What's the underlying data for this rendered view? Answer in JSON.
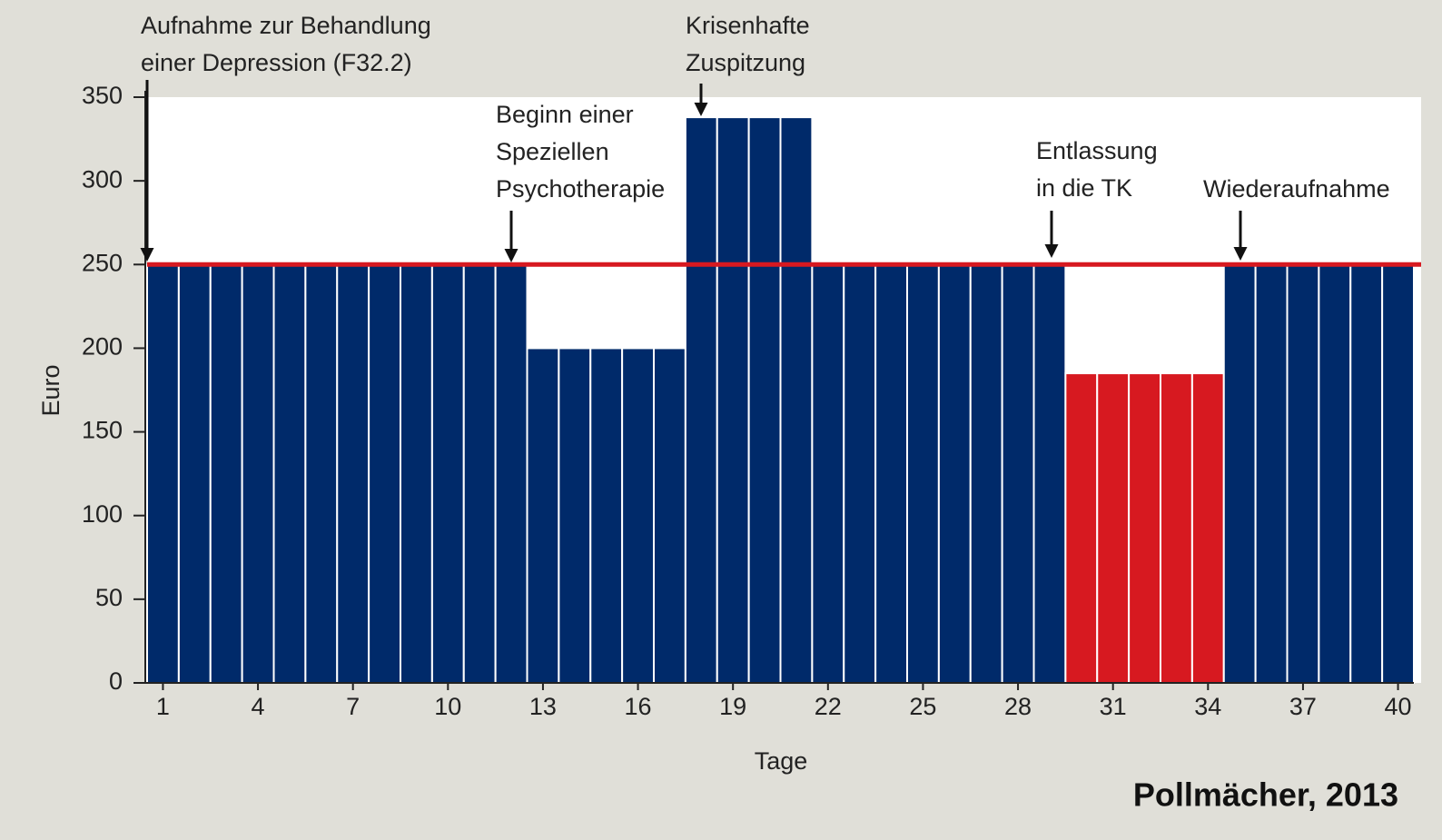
{
  "chart_data": {
    "type": "bar",
    "categories": [
      1,
      null,
      null,
      4,
      null,
      null,
      7,
      null,
      null,
      10,
      null,
      null,
      13,
      null,
      null,
      16,
      null,
      null,
      19,
      null,
      null,
      22,
      null,
      null,
      25,
      null,
      null,
      28,
      null,
      null,
      31,
      null,
      null,
      34,
      null,
      null,
      37,
      null,
      null,
      40
    ],
    "values": [
      250,
      250,
      250,
      250,
      250,
      250,
      250,
      250,
      250,
      250,
      250,
      250,
      200,
      200,
      200,
      200,
      200,
      338,
      338,
      338,
      338,
      250,
      250,
      250,
      250,
      250,
      250,
      250,
      250,
      185,
      185,
      185,
      185,
      185,
      250,
      250,
      250,
      250,
      250,
      250
    ],
    "colors": [
      "#002a6a",
      "#002a6a",
      "#002a6a",
      "#002a6a",
      "#002a6a",
      "#002a6a",
      "#002a6a",
      "#002a6a",
      "#002a6a",
      "#002a6a",
      "#002a6a",
      "#002a6a",
      "#002a6a",
      "#002a6a",
      "#002a6a",
      "#002a6a",
      "#002a6a",
      "#002a6a",
      "#002a6a",
      "#002a6a",
      "#002a6a",
      "#002a6a",
      "#002a6a",
      "#002a6a",
      "#002a6a",
      "#002a6a",
      "#002a6a",
      "#002a6a",
      "#002a6a",
      "#d71920",
      "#d71920",
      "#d71920",
      "#d71920",
      "#d71920",
      "#002a6a",
      "#002a6a",
      "#002a6a",
      "#002a6a",
      "#002a6a",
      "#002a6a"
    ],
    "ylim": [
      0,
      350
    ],
    "yticks": [
      0,
      50,
      100,
      150,
      200,
      250,
      300,
      350
    ],
    "y_label": "Euro",
    "x_label": "Tage",
    "reference_line": {
      "value": 250,
      "color": "#d71920"
    },
    "annotations": [
      {
        "lines": [
          "Aufnahme zur Behandlung",
          "einer Depression (F32.2)"
        ]
      },
      {
        "lines": [
          "Beginn einer",
          "Speziellen",
          "Psychotherapie"
        ]
      },
      {
        "lines": [
          "Krisenhafte",
          "Zuspitzung"
        ]
      },
      {
        "lines": [
          "Entlassung",
          "in die TK"
        ]
      },
      {
        "lines": [
          "Wiederaufnahme"
        ]
      }
    ],
    "source": "Pollmächer, 2013"
  }
}
